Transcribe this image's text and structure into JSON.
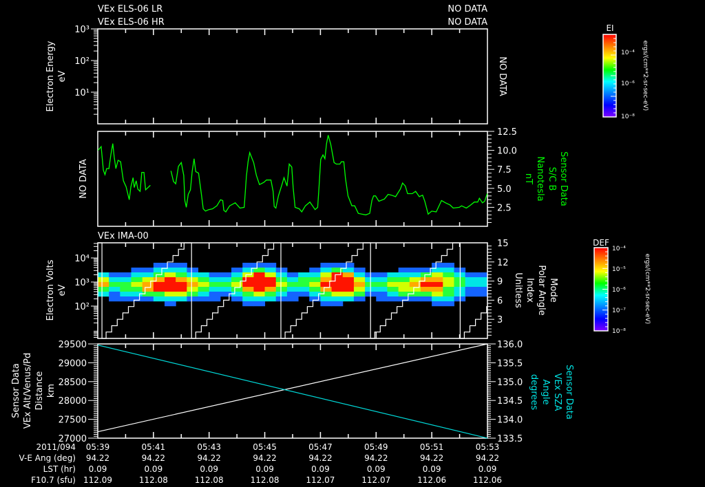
{
  "header": {
    "els_lr_title": "VEx ELS-06 LR",
    "els_hr_title": "VEx ELS-06 HR",
    "els_lr_status": "NO DATA",
    "els_hr_status": "NO DATA",
    "ima_title": "VEx IMA-00"
  },
  "colorbars": {
    "ei": {
      "title": "EI",
      "units": "ergs/(cm**2-sr-sec-eV)",
      "labels": [
        "10⁻⁴",
        "10⁻⁶",
        "10⁻⁸"
      ],
      "colors": [
        "#ff0000",
        "#ff8000",
        "#ffff00",
        "#00ff00",
        "#00ffff",
        "#0080ff",
        "#0000ff",
        "#8000ff"
      ]
    },
    "def": {
      "title": "DEF",
      "units": "ergs/(cm**2-sr-sec-eV)",
      "labels": [
        "10⁻⁴",
        "10⁻⁵",
        "10⁻⁶",
        "10⁻⁷",
        "10⁻⁸"
      ],
      "colors": [
        "#ff0000",
        "#ff8000",
        "#ffff00",
        "#00ff00",
        "#00ffff",
        "#0080ff",
        "#0000ff",
        "#8000ff"
      ]
    }
  },
  "ephemeris": {
    "rows": [
      {
        "label": "2011/094",
        "values": [
          "05:39",
          "05:41",
          "05:43",
          "05:45",
          "05:47",
          "05:49",
          "05:51",
          "05:53"
        ]
      },
      {
        "label": "V-E Ang (deg)",
        "values": [
          "94.22",
          "94.22",
          "94.22",
          "94.22",
          "94.22",
          "94.22",
          "94.22",
          "94.22"
        ]
      },
      {
        "label": "LST (hr)",
        "values": [
          "0.09",
          "0.09",
          "0.09",
          "0.09",
          "0.09",
          "0.09",
          "0.09",
          "0.09"
        ]
      },
      {
        "label": "F10.7 (sfu)",
        "values": [
          "112.09",
          "112.08",
          "112.08",
          "112.08",
          "112.07",
          "112.07",
          "112.06",
          "112.06"
        ]
      }
    ]
  },
  "chart_data": [
    {
      "type": "heatmap",
      "title": "VEx ELS-06 LR / HR",
      "ylabel": [
        "Electron Energy",
        "eV"
      ],
      "status": "NO DATA",
      "yscale": "log",
      "ylim": [
        1,
        1000
      ],
      "yticks": [
        "10³",
        "10²",
        "10¹"
      ],
      "ytick_values": [
        1000,
        100,
        10
      ],
      "xlim_minutes_after_0539": [
        0,
        14
      ]
    },
    {
      "type": "line",
      "left_status": "NO DATA",
      "ylabel": [
        "Sensor Data",
        "S/C B",
        "Nanotesla",
        "nT"
      ],
      "color": "#00ff00",
      "ylim": [
        0,
        12.5
      ],
      "yticks": [
        "12.5",
        "10.0",
        "7.5",
        "5.0",
        "2.5"
      ],
      "ytick_values": [
        12.5,
        10,
        7.5,
        5,
        2.5
      ],
      "x": [
        0.01,
        0.12,
        0.17,
        0.2,
        0.26,
        0.32,
        0.4,
        0.47,
        0.54,
        0.59,
        0.65,
        0.73,
        0.82,
        0.92,
        1.02,
        1.13,
        1.19,
        1.27,
        1.31,
        1.38,
        1.44,
        1.52,
        1.58,
        1.66,
        1.72,
        1.89,
        2.2,
        2.63,
        2.72,
        2.8,
        2.9,
        3.0,
        3.09,
        3.13,
        3.18,
        3.25,
        3.33,
        3.39,
        3.46,
        3.52,
        3.62,
        3.72,
        3.79,
        3.87,
        3.99,
        4.12,
        4.28,
        4.41,
        4.49,
        4.53,
        4.6,
        4.74,
        4.94,
        5.11,
        5.26,
        5.34,
        5.4,
        5.46,
        5.6,
        5.7,
        5.81,
        5.97,
        6.06,
        6.22,
        6.3,
        6.34,
        6.4,
        6.49,
        6.61,
        6.69,
        6.8,
        6.88,
        6.97,
        7.02,
        7.09,
        7.24,
        7.33,
        7.46,
        7.62,
        7.81,
        7.9,
        7.95,
        8.01,
        8.09,
        8.16,
        8.22,
        8.28,
        8.37,
        8.49,
        8.57,
        8.7,
        8.75,
        8.84,
        8.9,
        8.99,
        9.13,
        9.23,
        9.36,
        9.48,
        9.63,
        9.77,
        9.85,
        9.91,
        9.98,
        10.1,
        10.3,
        10.43,
        10.55,
        10.7,
        10.87,
        10.95,
        11.05,
        11.13,
        11.3,
        11.42,
        11.55,
        11.67,
        11.75,
        11.87,
        12.0,
        12.16,
        12.35,
        12.49,
        12.66,
        12.77,
        12.99,
        13.07,
        13.24,
        13.36,
        13.53,
        13.65,
        13.71,
        13.82,
        13.9,
        13.99
      ],
      "y": [
        10.0,
        10.5,
        8.6,
        7.4,
        6.8,
        7.6,
        7.6,
        9.4,
        10.9,
        9.1,
        7.6,
        8.7,
        8.5,
        6.0,
        5.2,
        3.5,
        5.2,
        6.4,
        5.1,
        6.0,
        4.9,
        4.6,
        7.1,
        7.1,
        4.8,
        5.4,
        null,
        7.3,
        5.9,
        5.6,
        7.9,
        8.4,
        6.7,
        3.4,
        2.5,
        4.2,
        4.8,
        7.2,
        8.9,
        7.2,
        7.0,
        4.3,
        2.3,
        2.0,
        2.2,
        2.3,
        2.7,
        3.5,
        3.4,
        2.1,
        1.9,
        2.7,
        3.1,
        2.4,
        2.5,
        6.6,
        8.5,
        9.7,
        8.4,
        6.7,
        5.5,
        5.8,
        6.1,
        6.1,
        4.6,
        2.6,
        2.4,
        4.0,
        5.4,
        6.4,
        5.3,
        8.2,
        7.8,
        5.1,
        2.5,
        2.3,
        1.9,
        2.7,
        3.2,
        2.2,
        2.5,
        5.2,
        8.8,
        9.4,
        8.9,
        10.9,
        12.0,
        10.8,
        8.4,
        8.2,
        8.2,
        8.5,
        8.5,
        6.3,
        4.0,
        2.7,
        2.7,
        1.7,
        1.6,
        1.5,
        1.7,
        3.4,
        4.0,
        4.0,
        3.3,
        3.6,
        4.2,
        4.1,
        3.9,
        4.9,
        5.7,
        5.3,
        4.3,
        4.3,
        4.6,
        3.9,
        4.1,
        3.3,
        1.6,
        2.0,
        1.9,
        3.4,
        3.1,
        2.8,
        2.4,
        2.5,
        2.7,
        2.4,
        2.7,
        3.2,
        3.2,
        3.7,
        3.1,
        3.3,
        4.3
      ]
    },
    {
      "type": "heatmap",
      "title": "VEx IMA-00",
      "ylabel": [
        "Electron Volts",
        "eV"
      ],
      "right_label": [
        "Mode",
        "Polar Angle",
        "Index",
        "Unitless"
      ],
      "yscale": "log",
      "ylim": [
        4.6,
        42000
      ],
      "yticks": [
        "10⁴",
        "10³",
        "10²"
      ],
      "ytick_values": [
        10000,
        1000,
        100
      ],
      "right_ylim": [
        0,
        15
      ],
      "right_yticks": [
        "15",
        "12",
        "9",
        "6",
        "3"
      ],
      "right_ytick_values": [
        15,
        12,
        9,
        6,
        3
      ],
      "time_bin_minutes": 0.4,
      "log_energy_rows": [
        3.9,
        3.7,
        3.5,
        3.3,
        3.1,
        2.9,
        2.7,
        2.5,
        2.3,
        2.1
      ],
      "level_colors": [
        "",
        "#1464ff",
        "#00e6e6",
        "#28ff3c",
        "#d2ff00",
        "#ffaa00",
        "#ff1400"
      ],
      "z_columns": [
        "0002453200",
        "0001232110",
        "0001233210",
        "0012343210",
        "0012455310",
        "0123566320",
        "0124666421",
        "0123566420",
        "0012454310",
        "0002343210",
        "0001232110",
        "0001232100",
        "0012343210",
        "0124665321",
        "0136666421",
        "0124665320",
        "0012343210",
        "0001232110",
        "0002332100",
        "0012343210",
        "0124565321",
        "0136666421",
        "0125666420",
        "0012454310",
        "0001232100",
        "0001232110",
        "0002343210",
        "0012344310",
        "0012454310",
        "0013565310",
        "0124565421",
        "0123443321",
        "0012332210",
        "0001221100",
        "0001221100"
      ],
      "mode_reset_minutes": [
        0.15,
        3.37,
        6.58,
        9.8,
        13.02
      ],
      "mode_step_minutes": 0.2
    },
    {
      "type": "line",
      "ylabel": [
        "Sensor Data",
        "VEx Alt/Venus/Pd",
        "Distance",
        "km"
      ],
      "right_label": [
        "Sensor Data",
        "VEx SZA",
        "Angle",
        "degrees"
      ],
      "ylim": [
        27000,
        29500
      ],
      "yticks": [
        "29500",
        "29000",
        "28500",
        "28000",
        "27500",
        "27000"
      ],
      "ytick_values": [
        29500,
        29000,
        28500,
        28000,
        27500,
        27000
      ],
      "right_ylim": [
        133.5,
        136.0
      ],
      "right_yticks": [
        "136.0",
        "135.5",
        "135.0",
        "134.5",
        "134.0",
        "133.5"
      ],
      "right_ytick_values": [
        136.0,
        135.5,
        135.0,
        134.5,
        134.0,
        133.5
      ],
      "series": [
        {
          "name": "VEx Alt",
          "axis": "left",
          "color": "#ffffff",
          "x": [
            0,
            14
          ],
          "y": [
            27170,
            29500
          ]
        },
        {
          "name": "VEx SZA",
          "axis": "right",
          "color": "#00d8d8",
          "x": [
            0,
            14
          ],
          "y": [
            135.97,
            133.5
          ]
        }
      ]
    }
  ]
}
